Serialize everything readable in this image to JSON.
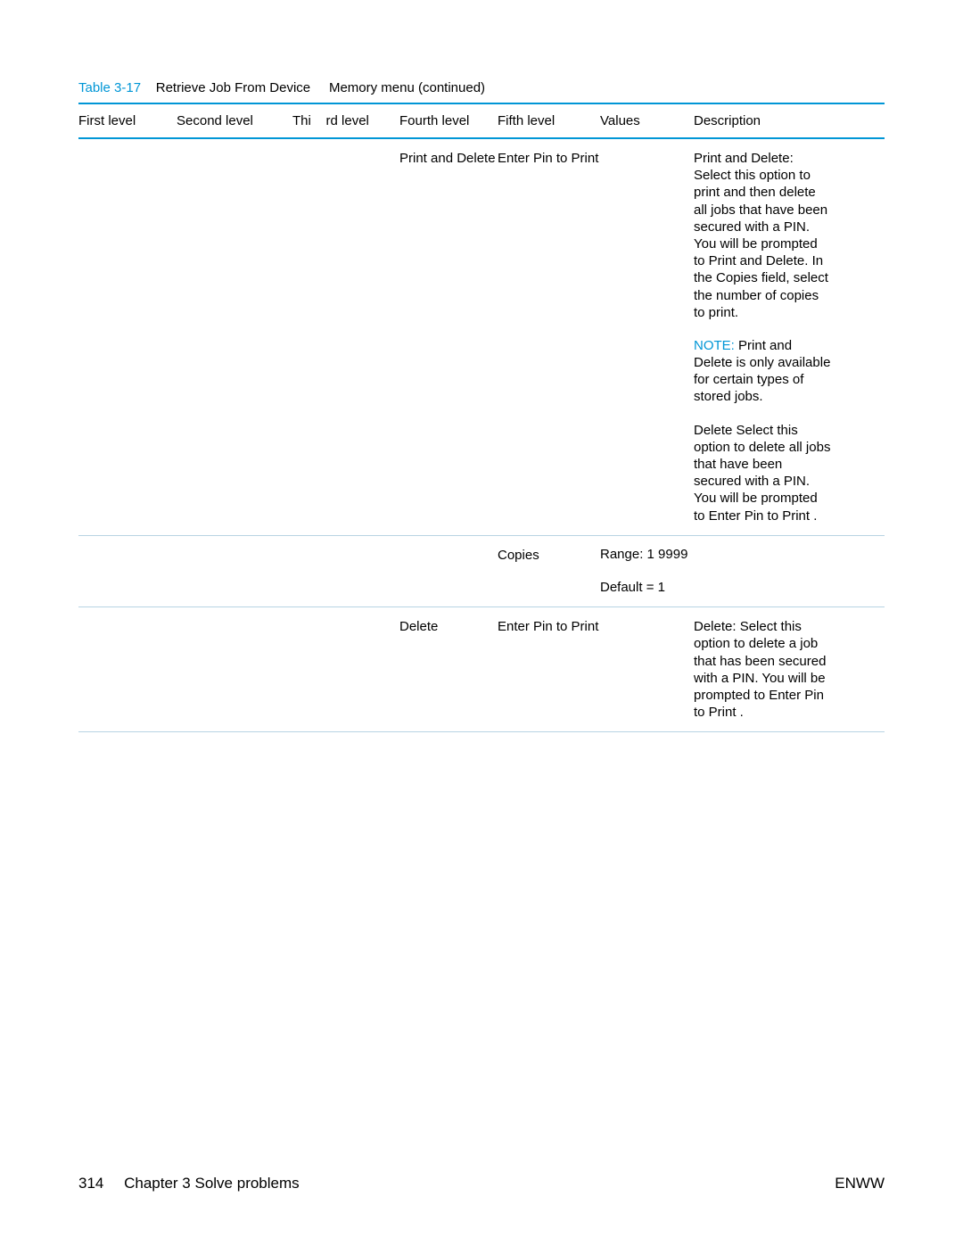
{
  "caption": {
    "number": "Table 3-17",
    "title_part1": "Retrieve Job From Device",
    "title_part2": "Memory menu (continued)"
  },
  "columns": {
    "c1": "First level",
    "c2": "Second level",
    "c3_a": "Thi",
    "c3_b": "rd level",
    "c4": "Fourth level",
    "c5": "Fifth level",
    "c6": "Values",
    "c7": "Description"
  },
  "rows": [
    {
      "fourth": "Print and Delete",
      "fifth": "Enter Pin to Print",
      "values": "",
      "desc": [
        {
          "type": "plain",
          "text": "Print and Delete: Select this option to print and then delete all jobs that have been secured with a PIN. You will be prompted to Print and Delete. In the Copies  field, select the number of copies to print."
        },
        {
          "type": "note",
          "label": "NOTE:",
          "text": "Print and Delete   is only available for certain types of stored jobs."
        },
        {
          "type": "plain",
          "text": "Delete Select this option to delete all jobs that have been secured with a PIN. You will be prompted to Enter Pin to Print ."
        }
      ]
    },
    {
      "fourth": "",
      "fifth": "Copies",
      "values_multi": [
        "Range: 1 9999",
        "Default = 1"
      ],
      "desc": []
    },
    {
      "fourth": "Delete",
      "fifth": "Enter Pin to Print",
      "values": "",
      "desc": [
        {
          "type": "plain",
          "text": "Delete: Select this option to delete a job that has been secured with a PIN. You will be prompted to Enter Pin to Print ."
        }
      ]
    }
  ],
  "footer": {
    "page_num": "314",
    "chapter": "Chapter 3   Solve problems",
    "right": "ENWW"
  },
  "colors": {
    "accent": "#0096d6",
    "rule_light": "#b8d4e3",
    "text": "#000000",
    "bg": "#ffffff"
  }
}
